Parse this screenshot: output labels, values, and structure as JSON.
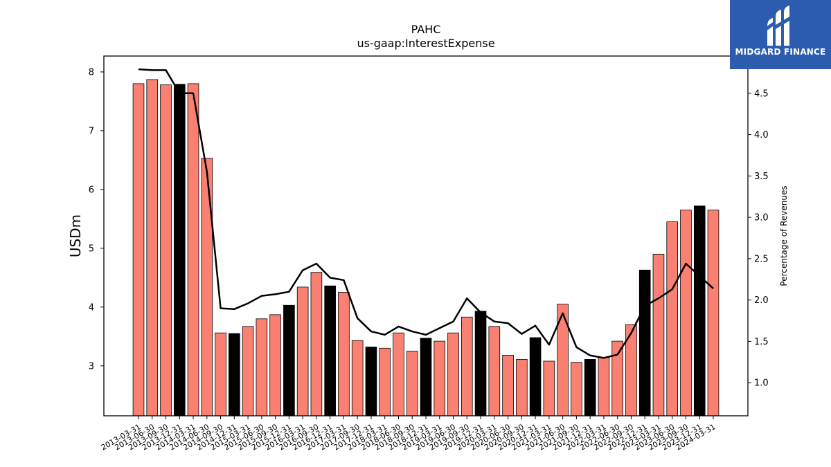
{
  "chart_data": {
    "type": "bar",
    "title": "PAHC",
    "subtitle": "us-gaap:InterestExpense",
    "ylabel": "USDm",
    "y2label": "Percentage of Revenues",
    "ylim": [
      2.15,
      8.27
    ],
    "y2lim": [
      0.6,
      4.95
    ],
    "yticks": [
      3,
      4,
      5,
      6,
      7,
      8
    ],
    "y2ticks": [
      1.0,
      1.5,
      2.0,
      2.5,
      3.0,
      3.5,
      4.0,
      4.5
    ],
    "colors": {
      "quarter": "#fa8072",
      "fiscal_year_end": "#000000",
      "line": "#000000"
    },
    "categories": [
      "2013-03-31",
      "2013-06-30",
      "2013-09-30",
      "2013-12-31",
      "2014-03-31",
      "2014-06-30",
      "2014-09-30",
      "2014-12-31",
      "2015-03-31",
      "2015-06-30",
      "2015-09-30",
      "2015-12-31",
      "2016-03-31",
      "2016-09-30",
      "2016-12-31",
      "2017-03-31",
      "2017-09-30",
      "2017-12-31",
      "2018-03-31",
      "2018-06-30",
      "2018-09-30",
      "2018-12-31",
      "2019-03-31",
      "2019-06-30",
      "2019-09-30",
      "2019-12-31",
      "2020-03-31",
      "2020-06-30",
      "2020-09-30",
      "2020-12-31",
      "2021-03-31",
      "2021-06-30",
      "2021-09-30",
      "2021-12-31",
      "2022-03-31",
      "2022-06-30",
      "2022-09-30",
      "2022-12-31",
      "2023-03-31",
      "2023-06-30",
      "2023-09-30",
      "2023-12-31",
      "2024-03-31"
    ],
    "series": [
      {
        "type": "bar",
        "values": [
          7.8,
          7.87,
          7.78,
          7.79,
          7.8,
          6.53,
          3.56,
          3.55,
          3.67,
          3.8,
          3.87,
          4.03,
          4.34,
          4.59,
          4.36,
          4.25,
          3.43,
          3.32,
          3.3,
          3.56,
          3.25,
          3.47,
          3.42,
          3.56,
          3.83,
          3.93,
          3.67,
          3.18,
          3.11,
          3.48,
          3.08,
          4.05,
          3.06,
          3.11,
          3.14,
          3.42,
          3.7,
          4.63,
          4.9,
          5.45,
          5.65,
          5.72,
          5.65
        ],
        "highlight": [
          false,
          false,
          false,
          true,
          false,
          false,
          false,
          true,
          false,
          false,
          false,
          true,
          false,
          false,
          true,
          false,
          false,
          true,
          false,
          false,
          false,
          true,
          false,
          false,
          false,
          true,
          false,
          false,
          false,
          true,
          false,
          false,
          false,
          true,
          false,
          false,
          false,
          true,
          false,
          false,
          false,
          true,
          false
        ]
      },
      {
        "type": "line",
        "axis": "right",
        "values": [
          4.79,
          4.78,
          4.78,
          4.5,
          4.5,
          3.55,
          1.9,
          1.89,
          1.96,
          2.05,
          2.07,
          2.1,
          2.36,
          2.44,
          2.27,
          2.24,
          1.78,
          1.62,
          1.58,
          1.68,
          1.62,
          1.58,
          1.66,
          1.74,
          2.02,
          1.85,
          1.74,
          1.72,
          1.59,
          1.69,
          1.46,
          1.84,
          1.43,
          1.33,
          1.3,
          1.34,
          1.6,
          1.93,
          2.02,
          2.13,
          2.44,
          2.29,
          2.14
        ]
      }
    ],
    "grid": false
  },
  "logo": {
    "text": "MIDGARD FINANCE",
    "icon": "midgard-logo-icon"
  }
}
